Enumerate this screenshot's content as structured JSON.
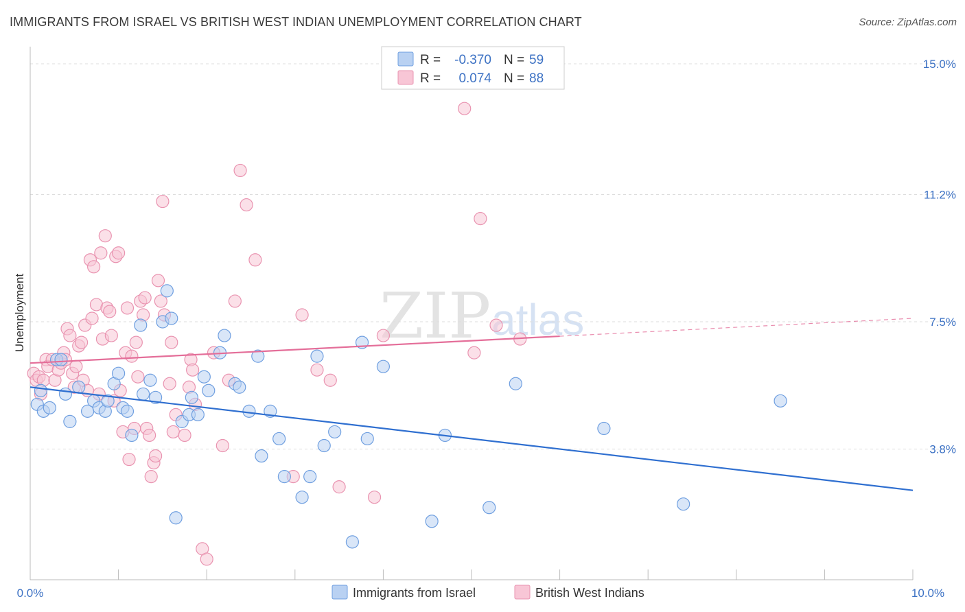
{
  "header": {
    "title": "IMMIGRANTS FROM ISRAEL VS BRITISH WEST INDIAN UNEMPLOYMENT CORRELATION CHART",
    "source": "Source: ZipAtlas.com"
  },
  "watermark": {
    "zip": "ZIP",
    "atlas": "atlas"
  },
  "legend": {
    "rows": [
      {
        "r_label": "R =",
        "r_value": "-0.370",
        "n_label": "N =",
        "n_value": "59"
      },
      {
        "r_label": "R =",
        "r_value": "0.074",
        "n_label": "N =",
        "n_value": "88"
      }
    ]
  },
  "colors": {
    "series_a_fill": "#b9d1f2",
    "series_a_stroke": "#6f9fe0",
    "series_a_line": "#2f6fd0",
    "series_b_fill": "#f8c6d6",
    "series_b_stroke": "#e993b0",
    "series_b_line": "#e46e99",
    "tick_text": "#3d72c4",
    "grid": "#dddddd"
  },
  "chart_data": {
    "type": "scatter",
    "title": "IMMIGRANTS FROM ISRAEL VS BRITISH WEST INDIAN UNEMPLOYMENT CORRELATION CHART",
    "xlabel": "",
    "ylabel": "Unemployment",
    "xlim": [
      0,
      10
    ],
    "ylim": [
      0,
      15.2
    ],
    "x_tick_labels": [
      "0.0%",
      "10.0%"
    ],
    "y_ticks": [
      3.8,
      7.5,
      11.2,
      15.0
    ],
    "y_tick_labels": [
      "3.8%",
      "7.5%",
      "11.2%",
      "15.0%"
    ],
    "grid": "horizontal dashed",
    "legend_position": "top-center",
    "series": [
      {
        "name": "Immigrants from Israel",
        "r": -0.37,
        "n": 59,
        "trend": {
          "x": [
            0,
            10
          ],
          "y": [
            5.6,
            2.6
          ],
          "dashed_from": null
        },
        "points": [
          [
            0.08,
            5.1
          ],
          [
            0.15,
            4.9
          ],
          [
            0.22,
            5.0
          ],
          [
            0.3,
            6.4
          ],
          [
            0.35,
            6.4
          ],
          [
            0.4,
            5.4
          ],
          [
            0.45,
            4.6
          ],
          [
            0.55,
            5.6
          ],
          [
            0.65,
            4.9
          ],
          [
            0.72,
            5.2
          ],
          [
            0.78,
            5.0
          ],
          [
            0.85,
            4.9
          ],
          [
            0.88,
            5.2
          ],
          [
            0.95,
            5.7
          ],
          [
            1.0,
            6.0
          ],
          [
            1.05,
            5.0
          ],
          [
            1.1,
            4.9
          ],
          [
            1.15,
            4.2
          ],
          [
            1.25,
            7.4
          ],
          [
            1.28,
            5.4
          ],
          [
            1.36,
            5.8
          ],
          [
            1.42,
            5.3
          ],
          [
            1.5,
            7.5
          ],
          [
            1.55,
            8.4
          ],
          [
            1.6,
            7.6
          ],
          [
            1.65,
            1.8
          ],
          [
            1.72,
            4.6
          ],
          [
            1.8,
            4.8
          ],
          [
            1.83,
            5.3
          ],
          [
            1.9,
            4.8
          ],
          [
            1.97,
            5.9
          ],
          [
            2.02,
            5.5
          ],
          [
            2.15,
            6.6
          ],
          [
            2.2,
            7.1
          ],
          [
            2.32,
            5.7
          ],
          [
            2.37,
            5.6
          ],
          [
            2.58,
            6.5
          ],
          [
            2.72,
            4.9
          ],
          [
            2.82,
            4.1
          ],
          [
            2.62,
            3.6
          ],
          [
            2.88,
            3.0
          ],
          [
            3.08,
            2.4
          ],
          [
            3.17,
            3.0
          ],
          [
            3.25,
            6.5
          ],
          [
            3.33,
            3.9
          ],
          [
            3.45,
            4.3
          ],
          [
            3.65,
            1.1
          ],
          [
            3.76,
            6.9
          ],
          [
            3.82,
            4.1
          ],
          [
            4.0,
            6.2
          ],
          [
            4.55,
            1.7
          ],
          [
            4.7,
            4.2
          ],
          [
            5.2,
            2.1
          ],
          [
            5.5,
            5.7
          ],
          [
            6.5,
            4.4
          ],
          [
            7.4,
            2.2
          ],
          [
            8.5,
            5.2
          ],
          [
            0.12,
            5.5
          ],
          [
            2.48,
            4.9
          ]
        ]
      },
      {
        "name": "British West Indians",
        "r": 0.074,
        "n": 88,
        "trend": {
          "x": [
            0,
            10
          ],
          "y": [
            6.3,
            7.6
          ],
          "dashed_from": 6.0
        },
        "points": [
          [
            0.04,
            6.0
          ],
          [
            0.07,
            5.8
          ],
          [
            0.1,
            5.9
          ],
          [
            0.12,
            5.4
          ],
          [
            0.15,
            5.8
          ],
          [
            0.18,
            6.4
          ],
          [
            0.2,
            6.2
          ],
          [
            0.25,
            6.4
          ],
          [
            0.28,
            5.8
          ],
          [
            0.32,
            6.1
          ],
          [
            0.35,
            6.3
          ],
          [
            0.38,
            6.6
          ],
          [
            0.4,
            6.4
          ],
          [
            0.42,
            7.3
          ],
          [
            0.45,
            7.1
          ],
          [
            0.48,
            6.0
          ],
          [
            0.5,
            5.6
          ],
          [
            0.52,
            6.2
          ],
          [
            0.55,
            6.8
          ],
          [
            0.58,
            6.9
          ],
          [
            0.6,
            5.8
          ],
          [
            0.62,
            7.4
          ],
          [
            0.65,
            5.5
          ],
          [
            0.68,
            9.3
          ],
          [
            0.7,
            7.6
          ],
          [
            0.72,
            9.1
          ],
          [
            0.75,
            8.0
          ],
          [
            0.78,
            5.4
          ],
          [
            0.8,
            9.5
          ],
          [
            0.82,
            7.0
          ],
          [
            0.85,
            10.0
          ],
          [
            0.87,
            7.9
          ],
          [
            0.9,
            7.8
          ],
          [
            0.92,
            7.1
          ],
          [
            0.95,
            5.2
          ],
          [
            0.97,
            9.4
          ],
          [
            1.0,
            9.5
          ],
          [
            1.02,
            5.5
          ],
          [
            1.05,
            4.3
          ],
          [
            1.08,
            6.6
          ],
          [
            1.1,
            7.9
          ],
          [
            1.12,
            3.5
          ],
          [
            1.15,
            6.5
          ],
          [
            1.18,
            4.4
          ],
          [
            1.2,
            6.9
          ],
          [
            1.22,
            5.9
          ],
          [
            1.25,
            8.1
          ],
          [
            1.28,
            7.7
          ],
          [
            1.3,
            8.2
          ],
          [
            1.32,
            4.4
          ],
          [
            1.35,
            4.2
          ],
          [
            1.37,
            3.0
          ],
          [
            1.4,
            3.4
          ],
          [
            1.42,
            3.6
          ],
          [
            1.45,
            8.7
          ],
          [
            1.48,
            8.1
          ],
          [
            1.5,
            11.0
          ],
          [
            1.52,
            7.7
          ],
          [
            1.58,
            5.7
          ],
          [
            1.6,
            6.9
          ],
          [
            1.62,
            4.3
          ],
          [
            1.65,
            4.8
          ],
          [
            1.75,
            4.2
          ],
          [
            1.8,
            5.6
          ],
          [
            1.82,
            6.4
          ],
          [
            1.84,
            6.1
          ],
          [
            1.87,
            5.1
          ],
          [
            1.95,
            0.9
          ],
          [
            2.0,
            0.6
          ],
          [
            2.08,
            6.6
          ],
          [
            2.18,
            3.9
          ],
          [
            2.25,
            5.8
          ],
          [
            2.32,
            8.1
          ],
          [
            2.38,
            11.9
          ],
          [
            2.45,
            10.9
          ],
          [
            2.55,
            9.3
          ],
          [
            2.98,
            3.0
          ],
          [
            3.08,
            7.7
          ],
          [
            3.25,
            6.1
          ],
          [
            3.4,
            5.8
          ],
          [
            3.5,
            2.7
          ],
          [
            3.9,
            2.4
          ],
          [
            4.0,
            7.1
          ],
          [
            4.92,
            13.7
          ],
          [
            5.1,
            10.5
          ],
          [
            5.28,
            7.4
          ],
          [
            5.55,
            7.0
          ],
          [
            5.03,
            6.6
          ]
        ]
      }
    ]
  }
}
